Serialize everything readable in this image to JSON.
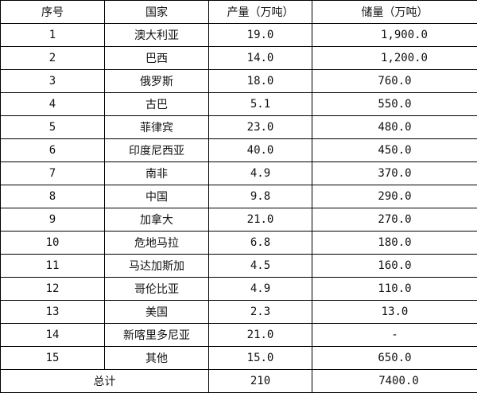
{
  "headers": [
    "序号",
    "国家",
    "产量（万吨）",
    "储量（万吨）"
  ],
  "rows": [
    {
      "no": "1",
      "country": "澳大利亚",
      "production": "19.0",
      "reserve": "1,900.0"
    },
    {
      "no": "2",
      "country": "巴西",
      "production": "14.0",
      "reserve": "1,200.0"
    },
    {
      "no": "3",
      "country": "俄罗斯",
      "production": "18.0",
      "reserve": "760.0"
    },
    {
      "no": "4",
      "country": "古巴",
      "production": "5.1",
      "reserve": "550.0"
    },
    {
      "no": "5",
      "country": "菲律宾",
      "production": "23.0",
      "reserve": "480.0"
    },
    {
      "no": "6",
      "country": "印度尼西亚",
      "production": "40.0",
      "reserve": "450.0"
    },
    {
      "no": "7",
      "country": "南非",
      "production": "4.9",
      "reserve": "370.0"
    },
    {
      "no": "8",
      "country": "中国",
      "production": "9.8",
      "reserve": "290.0"
    },
    {
      "no": "9",
      "country": "加拿大",
      "production": "21.0",
      "reserve": "270.0"
    },
    {
      "no": "10",
      "country": "危地马拉",
      "production": "6.8",
      "reserve": "180.0"
    },
    {
      "no": "11",
      "country": "马达加斯加",
      "production": "4.5",
      "reserve": "160.0"
    },
    {
      "no": "12",
      "country": "哥伦比亚",
      "production": "4.9",
      "reserve": "110.0"
    },
    {
      "no": "13",
      "country": "美国",
      "production": "2.3",
      "reserve": "13.0"
    },
    {
      "no": "14",
      "country": "新喀里多尼亚",
      "production": "21.0",
      "reserve": "-"
    },
    {
      "no": "15",
      "country": "其他",
      "production": "15.0",
      "reserve": "650.0"
    }
  ],
  "total": {
    "label": "总计",
    "production": "210",
    "reserve": "7400.0"
  }
}
